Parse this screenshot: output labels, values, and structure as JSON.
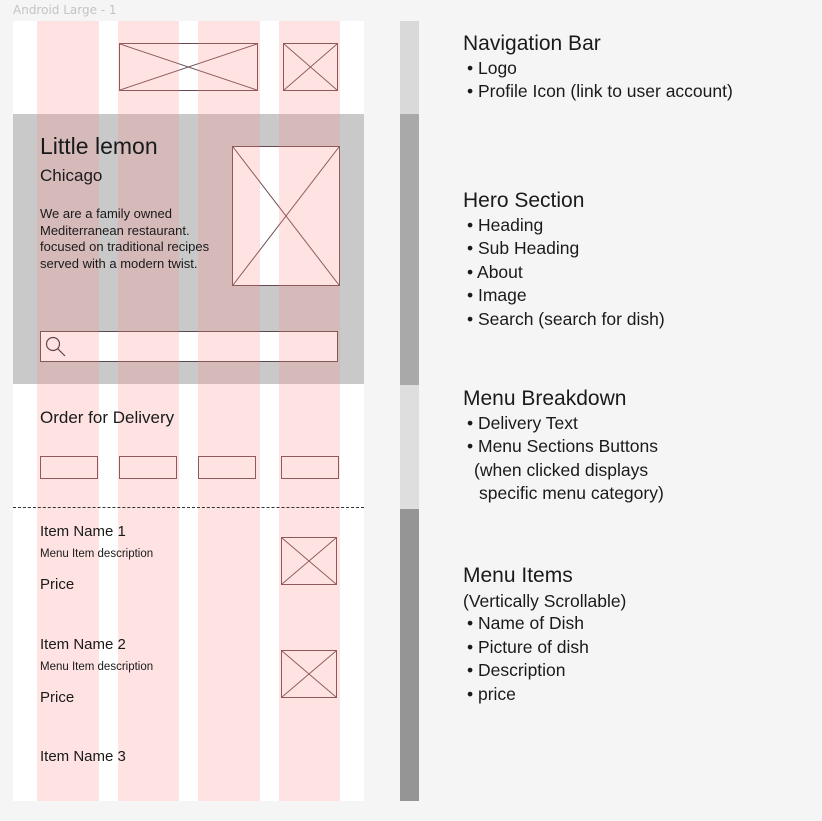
{
  "frame": {
    "label": "Android Large - 1"
  },
  "hero": {
    "title": "Little lemon",
    "subtitle": "Chicago",
    "about": "We are a family owned Mediterranean restaurant. focused on traditional recipes served with a modern twist."
  },
  "breakdown": {
    "delivery_text": "Order for Delivery"
  },
  "items": [
    {
      "name": "Item Name 1",
      "description": "Menu Item description",
      "price": "Price"
    },
    {
      "name": "Item Name 2",
      "description": "Menu Item description",
      "price": "Price"
    },
    {
      "name": "Item Name 3"
    }
  ],
  "notes": {
    "nav": {
      "heading": "Navigation Bar",
      "lines": [
        "• Logo",
        "• Profile Icon (link to user account)"
      ]
    },
    "hero": {
      "heading": "Hero Section",
      "lines": [
        "• Heading",
        "• Sub Heading",
        "• About",
        "• Image",
        "• Search (search for dish)"
      ]
    },
    "breakdown": {
      "heading": "Menu Breakdown",
      "lines": [
        "• Delivery Text",
        "• Menu Sections Buttons",
        "(when clicked displays",
        "specific menu category)"
      ]
    },
    "items": {
      "heading": "Menu Items",
      "lines": [
        "(Vertically Scrollable)",
        "• Name of Dish",
        "• Picture of dish",
        "• Description",
        "• price"
      ]
    }
  },
  "colors": {
    "grid_column": "#ff8a8a",
    "hero_bg": "#c9c9c9",
    "placeholder_border": "#6b4a4f",
    "scroll_nav": "#d9d9d9",
    "scroll_hero": "#a9a9a9",
    "scroll_breakdown": "#dedede",
    "scroll_items": "#959595"
  }
}
